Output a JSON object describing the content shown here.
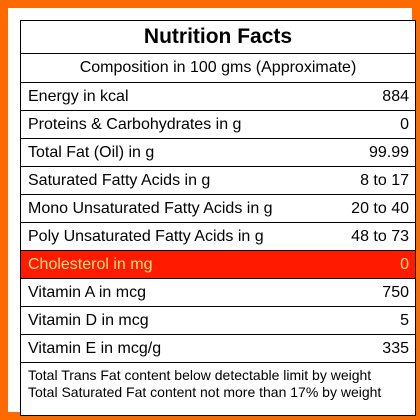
{
  "label": {
    "title": "Nutrition Facts",
    "subtitle": "Composition in 100 gms (Approximate)",
    "rows": [
      {
        "name": "Energy in kcal",
        "value": "884"
      },
      {
        "name": "Proteins & Carbohydrates in g",
        "value": "0"
      },
      {
        "name": "Total Fat (Oil) in g",
        "value": "99.99"
      },
      {
        "name": "Saturated Fatty Acids in g",
        "value": "8 to 17"
      },
      {
        "name": "Mono Unsaturated Fatty Acids in g",
        "value": "20 to 40"
      },
      {
        "name": "Poly Unsaturated Fatty Acids in g",
        "value": "48 to 73"
      },
      {
        "name": "Cholesterol in mg",
        "value": "0"
      },
      {
        "name": "Vitamin A in mcg",
        "value": "750"
      },
      {
        "name": "Vitamin D in mcg",
        "value": "5"
      },
      {
        "name": "Vitamin E in mcg/g",
        "value": "335"
      }
    ],
    "footnotes": [
      "Total Trans Fat content below detectable limit by weight",
      "Total Saturated Fat content not more than 17% by weight"
    ],
    "highlighted_row": "Cholesterol in mg"
  },
  "colors": {
    "outer_border": "#ff6a00",
    "highlight_background": "#ff1a00",
    "highlight_text": "#ffe08a"
  }
}
